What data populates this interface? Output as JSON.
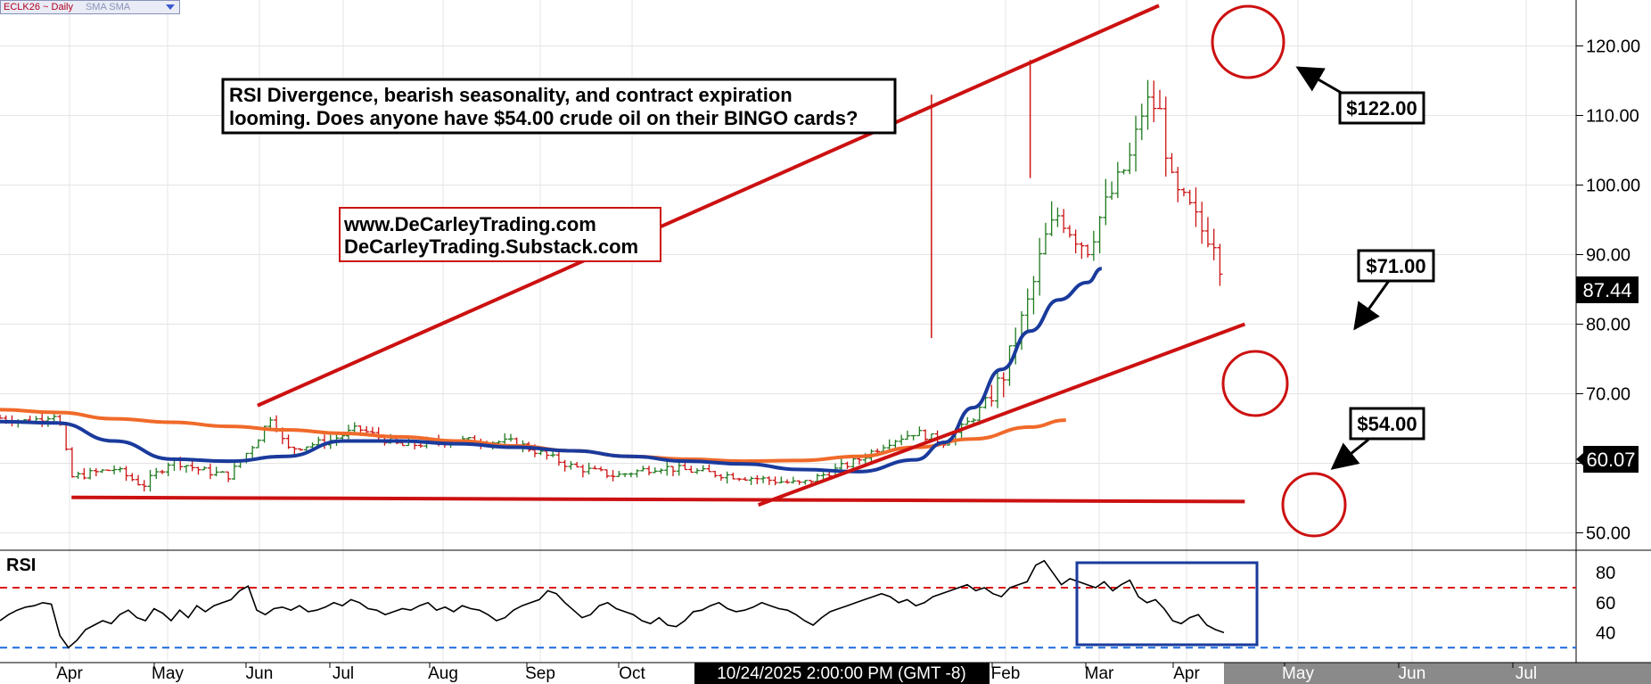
{
  "header": {
    "symbol": "ECLK26 ~ Daily",
    "studies": "SMA SMA",
    "dropdown_icon": "triangle-down-icon"
  },
  "annotations": {
    "main_text_line1": "RSI Divergence, bearish seasonality, and contract expiration",
    "main_text_line2": "looming. Does anyone have $54.00 crude oil on their BINGO cards?",
    "site_line1": "www.DeCarleyTrading.com",
    "site_line2": "DeCarleyTrading.Substack.com",
    "callout_high": "$122.00",
    "callout_mid": "$71.00",
    "callout_low": "$54.00",
    "rsi_title": "RSI",
    "crosshair_time": "10/24/2025 2:00:00 PM (GMT -8)"
  },
  "colors": {
    "trendline": "#cc1111",
    "sma_fast": "#1a3a9c",
    "sma_slow": "#f06a2a",
    "bar_up": "#1f7a1f",
    "bar_down": "#cc1111",
    "rsi_line": "#000000",
    "rsi_upper_band": "#dd1111",
    "rsi_lower_band": "#1a6adf",
    "highlight_box": "#1a3a9c"
  },
  "chart_data": {
    "type": "ohlc",
    "title": "ECLK26 ~ Daily",
    "y_axis": {
      "ticks": [
        "50.00",
        "60.00",
        "70.00",
        "80.00",
        "90.00",
        "100.00",
        "110.00",
        "120.00"
      ],
      "ylim": [
        47.5,
        126.6
      ]
    },
    "x_axis": {
      "labels": [
        "Apr",
        "May",
        "Jun",
        "Jul",
        "Aug",
        "Sep",
        "Oct",
        "Feb",
        "Mar",
        "Apr",
        "May",
        "Jun",
        "Jul"
      ]
    },
    "last_price": "87.44",
    "marker_price": "60.07",
    "price_path": [
      [
        0,
        66.5
      ],
      [
        0.02,
        66.0
      ],
      [
        0.04,
        67.2
      ],
      [
        0.05,
        58.0
      ],
      [
        0.08,
        59.2
      ],
      [
        0.1,
        56.8
      ],
      [
        0.12,
        60.5
      ],
      [
        0.14,
        59.0
      ],
      [
        0.16,
        58.2
      ],
      [
        0.18,
        63.5
      ],
      [
        0.19,
        67.0
      ],
      [
        0.2,
        62.0
      ],
      [
        0.23,
        63.2
      ],
      [
        0.25,
        65.0
      ],
      [
        0.28,
        62.5
      ],
      [
        0.32,
        63.3
      ],
      [
        0.36,
        63.0
      ],
      [
        0.4,
        59.5
      ],
      [
        0.43,
        58.2
      ],
      [
        0.46,
        59.5
      ],
      [
        0.5,
        58.5
      ],
      [
        0.53,
        57.8
      ],
      [
        0.56,
        57.0
      ],
      [
        0.6,
        60.5
      ],
      [
        0.62,
        63.0
      ],
      [
        0.64,
        64.5
      ],
      [
        0.66,
        63.0
      ],
      [
        0.68,
        66.5
      ],
      [
        0.7,
        72.0
      ],
      [
        0.71,
        78.0
      ],
      [
        0.72,
        84.0
      ],
      [
        0.73,
        92.0
      ],
      [
        0.74,
        96.0
      ],
      [
        0.75,
        93.0
      ],
      [
        0.76,
        91.0
      ],
      [
        0.77,
        96.0
      ],
      [
        0.78,
        100.0
      ],
      [
        0.79,
        104.0
      ],
      [
        0.8,
        112.0
      ],
      [
        0.81,
        111.0
      ],
      [
        0.82,
        99.0
      ],
      [
        0.83,
        97.0
      ],
      [
        0.84,
        93.5
      ],
      [
        0.85,
        92.0
      ],
      [
        0.855,
        86.0
      ]
    ],
    "series": [
      {
        "name": "SMA",
        "points": [
          [
            0,
            66.0
          ],
          [
            0.04,
            65.8
          ],
          [
            0.08,
            63.2
          ],
          [
            0.12,
            60.6
          ],
          [
            0.16,
            60.3
          ],
          [
            0.2,
            61.0
          ],
          [
            0.24,
            63.2
          ],
          [
            0.28,
            63.2
          ],
          [
            0.32,
            62.8
          ],
          [
            0.36,
            62.3
          ],
          [
            0.4,
            61.8
          ],
          [
            0.44,
            61.0
          ],
          [
            0.48,
            60.3
          ],
          [
            0.52,
            59.9
          ],
          [
            0.56,
            59.1
          ],
          [
            0.6,
            58.8
          ],
          [
            0.64,
            60.5
          ],
          [
            0.66,
            63.0
          ],
          [
            0.68,
            68.0
          ],
          [
            0.7,
            73.5
          ],
          [
            0.72,
            79.0
          ],
          [
            0.74,
            83.5
          ],
          [
            0.76,
            86.0
          ],
          [
            0.77,
            88.0
          ]
        ]
      },
      {
        "name": "SMA",
        "points": [
          [
            0,
            67.7
          ],
          [
            0.04,
            67.3
          ],
          [
            0.08,
            66.4
          ],
          [
            0.12,
            65.9
          ],
          [
            0.16,
            65.3
          ],
          [
            0.2,
            64.8
          ],
          [
            0.24,
            64.3
          ],
          [
            0.28,
            63.8
          ],
          [
            0.32,
            63.2
          ],
          [
            0.36,
            62.5
          ],
          [
            0.4,
            61.8
          ],
          [
            0.44,
            61.0
          ],
          [
            0.48,
            60.6
          ],
          [
            0.52,
            60.3
          ],
          [
            0.56,
            60.4
          ],
          [
            0.6,
            61.0
          ],
          [
            0.64,
            62.3
          ],
          [
            0.68,
            63.5
          ],
          [
            0.72,
            65.2
          ],
          [
            0.745,
            66.2
          ]
        ]
      }
    ],
    "trendlines": [
      {
        "name": "upper-trendline",
        "from": [
          0.18,
          68.3
        ],
        "to": [
          0.81,
          125.8
        ]
      },
      {
        "name": "middle-trendline",
        "from": [
          0.53,
          54.0
        ],
        "to": [
          0.87,
          80.0
        ]
      },
      {
        "name": "lower-trendline",
        "from": [
          0.05,
          55.1
        ],
        "to": [
          0.87,
          54.5
        ]
      }
    ],
    "rsi": {
      "type": "line",
      "ticks": [
        "40",
        "60",
        "80"
      ],
      "ylim": [
        20,
        95
      ],
      "upper_band": 70,
      "lower_band": 30,
      "values": [
        48,
        52,
        55,
        57,
        58,
        60,
        59,
        38,
        30,
        35,
        42,
        45,
        48,
        46,
        52,
        55,
        50,
        48,
        56,
        53,
        48,
        55,
        50,
        58,
        54,
        58,
        60,
        62,
        68,
        71,
        55,
        52,
        56,
        57,
        55,
        58,
        54,
        55,
        57,
        60,
        58,
        62,
        60,
        56,
        55,
        52,
        54,
        56,
        55,
        58,
        60,
        55,
        57,
        54,
        58,
        56,
        55,
        52,
        48,
        50,
        55,
        58,
        60,
        62,
        68,
        66,
        60,
        55,
        50,
        52,
        58,
        60,
        56,
        54,
        52,
        48,
        46,
        50,
        45,
        44,
        48,
        54,
        55,
        58,
        60,
        56,
        54,
        55,
        57,
        60,
        58,
        56,
        55,
        52,
        48,
        45,
        50,
        54,
        56,
        58,
        60,
        62,
        64,
        66,
        64,
        60,
        62,
        58,
        60,
        64,
        66,
        68,
        70,
        72,
        68,
        70,
        66,
        64,
        70,
        72,
        74,
        85,
        88,
        80,
        72,
        76,
        74,
        72,
        70,
        74,
        68,
        72,
        75,
        64,
        60,
        62,
        56,
        48,
        46,
        50,
        52,
        45,
        42,
        40
      ]
    }
  }
}
